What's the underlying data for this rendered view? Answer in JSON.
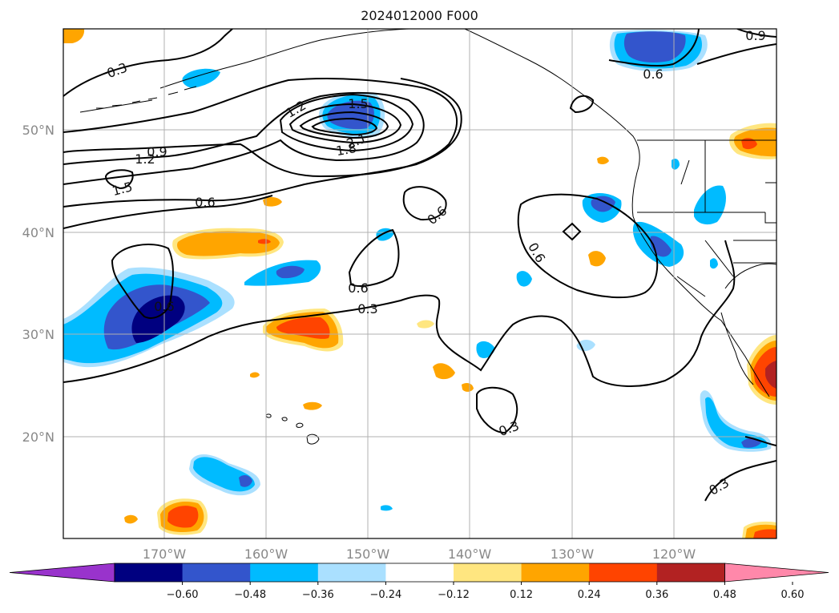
{
  "title": "2024012000 F000",
  "lat_labels": [
    "50°N",
    "40°N",
    "30°N",
    "20°N"
  ],
  "lon_labels": [
    "170°W",
    "160°W",
    "150°W",
    "140°W",
    "130°W",
    "120°W"
  ],
  "contour_labels": [
    "0.3",
    "1.2",
    "1.5",
    "0.9",
    "1.2",
    "1.5",
    "2.1",
    "1.8",
    "0.6",
    "0.6",
    "0.6",
    "0.6",
    "0.6",
    "0.3",
    "0.3",
    "0.3",
    "0.6",
    "0.9"
  ],
  "colorbar": {
    "ticks": [
      "−0.60",
      "−0.48",
      "−0.36",
      "−0.24",
      "−0.12",
      "0.12",
      "0.24",
      "0.36",
      "0.48",
      "0.60"
    ],
    "colors": [
      "#9933cc",
      "#000080",
      "#3355cc",
      "#00bbff",
      "#aae0ff",
      "#ffffff",
      "#ffe680",
      "#ffa500",
      "#ff4400",
      "#b22222",
      "#ff88aa"
    ]
  },
  "palette": {
    "neg_light": "#aae0ff",
    "neg_mid": "#00bbff",
    "neg_strong": "#3355cc",
    "neg_deep": "#000080",
    "pos_light": "#ffe680",
    "pos_mid": "#ffa500",
    "pos_strong": "#ff4400",
    "pos_deep": "#b22222"
  }
}
